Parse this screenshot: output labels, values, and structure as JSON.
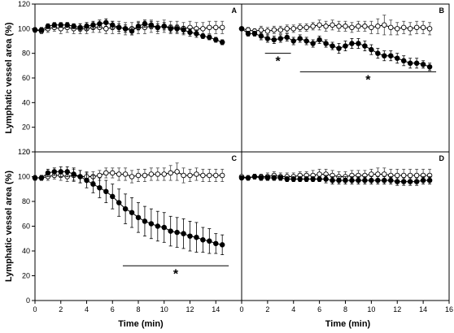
{
  "chart_data": [
    {
      "type": "line",
      "panel_label": "A",
      "xlim": [
        0,
        16
      ],
      "ylim": [
        0,
        120
      ],
      "xticks": [],
      "yticks": [
        "0",
        "20",
        "40",
        "60",
        "80",
        "100",
        "120"
      ],
      "ylabel": "Lymphatic vessel area (%)",
      "xlabel": "",
      "x": [
        0,
        0.5,
        1,
        1.5,
        2,
        2.5,
        3,
        3.5,
        4,
        4.5,
        5,
        5.5,
        6,
        6.5,
        7,
        7.5,
        8,
        8.5,
        9,
        9.5,
        10,
        10.5,
        11,
        11.5,
        12,
        12.5,
        13,
        13.5,
        14,
        14.5
      ],
      "series": [
        {
          "marker": "open",
          "values": [
            99,
            98,
            100,
            101,
            100,
            101,
            100,
            100,
            100,
            101,
            101,
            100,
            101,
            101,
            100,
            100,
            101,
            101,
            102,
            101,
            102,
            101,
            101,
            100,
            101,
            100,
            100,
            101,
            101,
            101
          ],
          "error": [
            2,
            2,
            3,
            3,
            4,
            4,
            4,
            4,
            4,
            4,
            4,
            4,
            5,
            5,
            5,
            5,
            5,
            5,
            5,
            5,
            5,
            5,
            5,
            5,
            5,
            5,
            5,
            5,
            5,
            5
          ]
        },
        {
          "marker": "filled",
          "values": [
            99,
            99,
            102,
            103,
            103,
            103,
            102,
            101,
            102,
            103,
            104,
            105,
            103,
            101,
            100,
            98,
            102,
            104,
            103,
            101,
            102,
            100,
            100,
            99,
            97,
            96,
            94,
            93,
            91,
            89
          ],
          "error": [
            1,
            2,
            2,
            2,
            2,
            2,
            2,
            3,
            3,
            3,
            3,
            3,
            3,
            3,
            3,
            3,
            3,
            3,
            3,
            3,
            3,
            3,
            3,
            3,
            3,
            3,
            2,
            2,
            2,
            2
          ]
        }
      ],
      "sig_lines": []
    },
    {
      "type": "line",
      "panel_label": "B",
      "xlim": [
        0,
        16
      ],
      "ylim": [
        0,
        120
      ],
      "xticks": [],
      "yticks": [],
      "ylabel": "",
      "xlabel": "",
      "x": [
        0,
        0.5,
        1,
        1.5,
        2,
        2.5,
        3,
        3.5,
        4,
        4.5,
        5,
        5.5,
        6,
        6.5,
        7,
        7.5,
        8,
        8.5,
        9,
        9.5,
        10,
        10.5,
        11,
        11.5,
        12,
        12.5,
        13,
        13.5,
        14,
        14.5
      ],
      "series": [
        {
          "marker": "open",
          "values": [
            100,
            99,
            98,
            99,
            98,
            99,
            99,
            100,
            100,
            101,
            101,
            102,
            103,
            102,
            103,
            102,
            102,
            101,
            102,
            102,
            101,
            102,
            103,
            101,
            100,
            101,
            100,
            101,
            101,
            100
          ],
          "error": [
            1,
            2,
            2,
            3,
            3,
            3,
            3,
            3,
            3,
            3,
            3,
            3,
            4,
            4,
            4,
            4,
            4,
            4,
            4,
            4,
            5,
            6,
            8,
            6,
            5,
            5,
            5,
            5,
            5,
            5
          ]
        },
        {
          "marker": "filled",
          "values": [
            100,
            96,
            96,
            94,
            92,
            91,
            92,
            93,
            90,
            92,
            90,
            88,
            91,
            88,
            86,
            84,
            86,
            88,
            88,
            86,
            83,
            80,
            78,
            78,
            76,
            74,
            72,
            72,
            71,
            69
          ],
          "error": [
            1,
            2,
            2,
            3,
            3,
            3,
            3,
            3,
            3,
            3,
            3,
            3,
            3,
            3,
            3,
            4,
            4,
            4,
            4,
            4,
            4,
            4,
            4,
            4,
            4,
            4,
            4,
            4,
            3,
            3
          ]
        }
      ],
      "sig_lines": [
        {
          "x": [
            1.8,
            3.8
          ],
          "y": 80,
          "label": "*"
        },
        {
          "x": 4.5,
          "x2": 15,
          "y": 65,
          "label": "*"
        }
      ]
    },
    {
      "type": "line",
      "panel_label": "C",
      "xlim": [
        0,
        16
      ],
      "ylim": [
        0,
        120
      ],
      "xticks": [
        "0",
        "2",
        "4",
        "6",
        "8",
        "10",
        "12",
        "14"
      ],
      "yticks": [
        "0",
        "20",
        "40",
        "60",
        "80",
        "100",
        "120"
      ],
      "ylabel": "Lymphatic vessel area (%)",
      "xlabel": "Time (min)",
      "x": [
        0,
        0.5,
        1,
        1.5,
        2,
        2.5,
        3,
        3.5,
        4,
        4.5,
        5,
        5.5,
        6,
        6.5,
        7,
        7.5,
        8,
        8.5,
        9,
        9.5,
        10,
        10.5,
        11,
        11.5,
        12,
        12.5,
        13,
        13.5,
        14,
        14.5
      ],
      "series": [
        {
          "marker": "open",
          "values": [
            99,
            99,
            100,
            101,
            101,
            100,
            101,
            100,
            100,
            100,
            101,
            103,
            103,
            102,
            102,
            100,
            101,
            101,
            102,
            102,
            102,
            103,
            104,
            101,
            101,
            102,
            101,
            101,
            101,
            101
          ],
          "error": [
            2,
            2,
            3,
            3,
            4,
            4,
            5,
            5,
            4,
            4,
            4,
            4,
            4,
            5,
            5,
            5,
            5,
            5,
            5,
            5,
            5,
            6,
            7,
            6,
            5,
            5,
            5,
            5,
            5,
            5
          ]
        },
        {
          "marker": "filled",
          "values": [
            99,
            99,
            103,
            104,
            104,
            104,
            102,
            100,
            97,
            94,
            91,
            88,
            84,
            79,
            74,
            71,
            67,
            64,
            62,
            60,
            59,
            56,
            55,
            54,
            52,
            51,
            49,
            48,
            46,
            45
          ],
          "error": [
            1,
            2,
            3,
            3,
            4,
            4,
            5,
            5,
            6,
            7,
            8,
            9,
            10,
            11,
            12,
            12,
            12,
            12,
            12,
            12,
            12,
            12,
            12,
            12,
            12,
            12,
            10,
            10,
            8,
            8
          ]
        }
      ],
      "sig_lines": [
        {
          "x": 6.8,
          "x2": 15,
          "y": 28,
          "label": "*"
        }
      ]
    },
    {
      "type": "line",
      "panel_label": "D",
      "xlim": [
        0,
        16
      ],
      "ylim": [
        0,
        120
      ],
      "xticks": [
        "0",
        "2",
        "4",
        "6",
        "8",
        "10",
        "12",
        "14",
        "16"
      ],
      "yticks": [],
      "ylabel": "",
      "xlabel": "Time (min)",
      "x": [
        0,
        0.5,
        1,
        1.5,
        2,
        2.5,
        3,
        3.5,
        4,
        4.5,
        5,
        5.5,
        6,
        6.5,
        7,
        7.5,
        8,
        8.5,
        9,
        9.5,
        10,
        10.5,
        11,
        11.5,
        12,
        12.5,
        13,
        13.5,
        14,
        14.5
      ],
      "series": [
        {
          "marker": "open",
          "values": [
            100,
            99,
            100,
            100,
            100,
            101,
            100,
            100,
            100,
            101,
            101,
            101,
            102,
            102,
            101,
            100,
            100,
            101,
            101,
            101,
            102,
            102,
            102,
            101,
            101,
            101,
            101,
            101,
            101,
            101
          ],
          "error": [
            1,
            2,
            2,
            2,
            3,
            3,
            3,
            3,
            3,
            3,
            3,
            4,
            4,
            4,
            4,
            4,
            4,
            4,
            4,
            4,
            4,
            5,
            5,
            5,
            5,
            5,
            5,
            5,
            5,
            5
          ]
        },
        {
          "marker": "filled",
          "values": [
            99,
            99,
            100,
            99,
            99,
            99,
            99,
            98,
            98,
            98,
            98,
            98,
            98,
            98,
            97,
            97,
            97,
            97,
            97,
            97,
            97,
            97,
            97,
            97,
            96,
            96,
            96,
            96,
            97,
            97
          ],
          "error": [
            1,
            1,
            2,
            2,
            2,
            2,
            2,
            2,
            2,
            2,
            2,
            2,
            2,
            3,
            3,
            3,
            3,
            3,
            3,
            3,
            3,
            3,
            3,
            3,
            3,
            3,
            3,
            3,
            3,
            3
          ]
        }
      ],
      "sig_lines": []
    }
  ]
}
